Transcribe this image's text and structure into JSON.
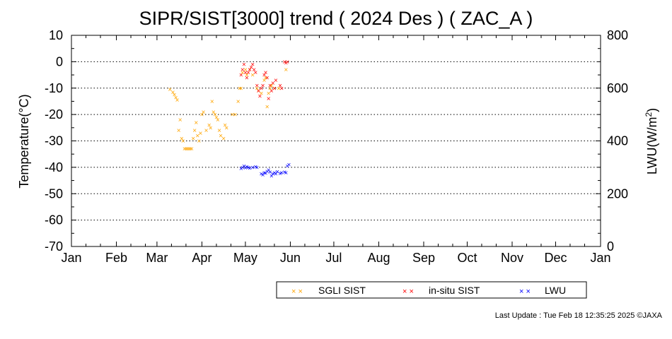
{
  "chart_data": {
    "type": "scatter",
    "title": "SIPR/SIST[3000] trend ( 2024 Des ) ( ZAC_A )",
    "ylabel": "Temperature(°C)",
    "y2label_prefix": "LWU(W/m",
    "y2label_sup": "2",
    "y2label_suffix": ")",
    "x_tick_labels": [
      "Jan",
      "Feb",
      "Mar",
      "Apr",
      "May",
      "Jun",
      "Jul",
      "Aug",
      "Sep",
      "Oct",
      "Nov",
      "Dec",
      "Jan"
    ],
    "y_ticks": [
      10,
      0,
      -10,
      -20,
      -30,
      -40,
      -50,
      -60,
      -70
    ],
    "y2_ticks": [
      800,
      600,
      400,
      200,
      0
    ],
    "xlim": [
      1,
      366
    ],
    "ylim": [
      -70,
      10
    ],
    "y2lim": [
      0,
      800
    ],
    "grid": "horizontal dotted",
    "marker": "×",
    "series": [
      {
        "name": "SGLI SIST",
        "color": "#ffa500",
        "axis": "left",
        "points": [
          [
            69,
            -10.5
          ],
          [
            71,
            -11.5
          ],
          [
            72,
            -12.5
          ],
          [
            73,
            -13.5
          ],
          [
            74,
            -14.5
          ],
          [
            75,
            -26
          ],
          [
            76,
            -22
          ],
          [
            77,
            -29
          ],
          [
            78,
            -30
          ],
          [
            79,
            -33
          ],
          [
            80,
            -33
          ],
          [
            81,
            -33
          ],
          [
            82,
            -33
          ],
          [
            83,
            -33
          ],
          [
            84,
            -33
          ],
          [
            85,
            -29
          ],
          [
            86,
            -26
          ],
          [
            87,
            -23
          ],
          [
            88,
            -28
          ],
          [
            89,
            -30
          ],
          [
            90,
            -27
          ],
          [
            91,
            -20
          ],
          [
            92,
            -19
          ],
          [
            94,
            -26
          ],
          [
            96,
            -24
          ],
          [
            97,
            -25
          ],
          [
            98,
            -15
          ],
          [
            99,
            -19
          ],
          [
            100,
            -20
          ],
          [
            101,
            -21
          ],
          [
            102,
            -22
          ],
          [
            103,
            -26
          ],
          [
            104,
            -28
          ],
          [
            106,
            -29
          ],
          [
            107,
            -24
          ],
          [
            108,
            -25
          ],
          [
            112,
            -20
          ],
          [
            114,
            -20
          ],
          [
            116,
            -15
          ],
          [
            117,
            -10
          ],
          [
            118,
            -10
          ],
          [
            119,
            -4
          ],
          [
            121,
            -3
          ],
          [
            122,
            -5
          ],
          [
            124,
            -3
          ],
          [
            126,
            -5
          ],
          [
            129,
            -10
          ],
          [
            130,
            -11
          ],
          [
            132,
            -12
          ],
          [
            134,
            -7
          ],
          [
            135,
            -6
          ],
          [
            136,
            -17
          ],
          [
            137,
            -12
          ],
          [
            138,
            -10
          ],
          [
            139,
            -9
          ],
          [
            141,
            -10
          ],
          [
            144,
            -10
          ],
          [
            149,
            -3
          ]
        ]
      },
      {
        "name": "in-situ SIST",
        "color": "#ff0000",
        "axis": "left",
        "points": [
          [
            118,
            -5
          ],
          [
            119,
            -3
          ],
          [
            120,
            -1
          ],
          [
            121,
            -4
          ],
          [
            122,
            -6
          ],
          [
            123,
            -4
          ],
          [
            124,
            -3
          ],
          [
            125,
            -2
          ],
          [
            126,
            -1
          ],
          [
            127,
            -3
          ],
          [
            128,
            -4
          ],
          [
            129,
            -9
          ],
          [
            130,
            -11
          ],
          [
            131,
            -13
          ],
          [
            132,
            -10
          ],
          [
            133,
            -9
          ],
          [
            134,
            -5
          ],
          [
            135,
            -4
          ],
          [
            136,
            -6
          ],
          [
            137,
            -14
          ],
          [
            138,
            -9
          ],
          [
            139,
            -11
          ],
          [
            140,
            -8
          ],
          [
            141,
            -10
          ],
          [
            142,
            -7
          ],
          [
            145,
            -9
          ],
          [
            146,
            -10
          ],
          [
            148,
            0
          ],
          [
            149,
            -0.5
          ],
          [
            150,
            0
          ]
        ]
      },
      {
        "name": "LWU",
        "color": "#0000ff",
        "axis": "right",
        "points": [
          [
            118,
            295
          ],
          [
            119,
            300
          ],
          [
            120,
            305
          ],
          [
            121,
            298
          ],
          [
            122,
            302
          ],
          [
            123,
            300
          ],
          [
            124,
            297
          ],
          [
            126,
            300
          ],
          [
            128,
            302
          ],
          [
            129,
            299
          ],
          [
            132,
            275
          ],
          [
            133,
            272
          ],
          [
            134,
            280
          ],
          [
            135,
            278
          ],
          [
            136,
            285
          ],
          [
            137,
            290
          ],
          [
            138,
            282
          ],
          [
            139,
            268
          ],
          [
            140,
            275
          ],
          [
            141,
            280
          ],
          [
            142,
            276
          ],
          [
            143,
            283
          ],
          [
            145,
            277
          ],
          [
            146,
            280
          ],
          [
            148,
            282
          ],
          [
            149,
            280
          ],
          [
            150,
            305
          ],
          [
            151,
            310
          ]
        ]
      }
    ],
    "legend": {
      "placement": "bottom"
    }
  },
  "footer": {
    "last_update": "Last Update : Tue Feb 18 12:35:25 2025  ©JAXA"
  }
}
